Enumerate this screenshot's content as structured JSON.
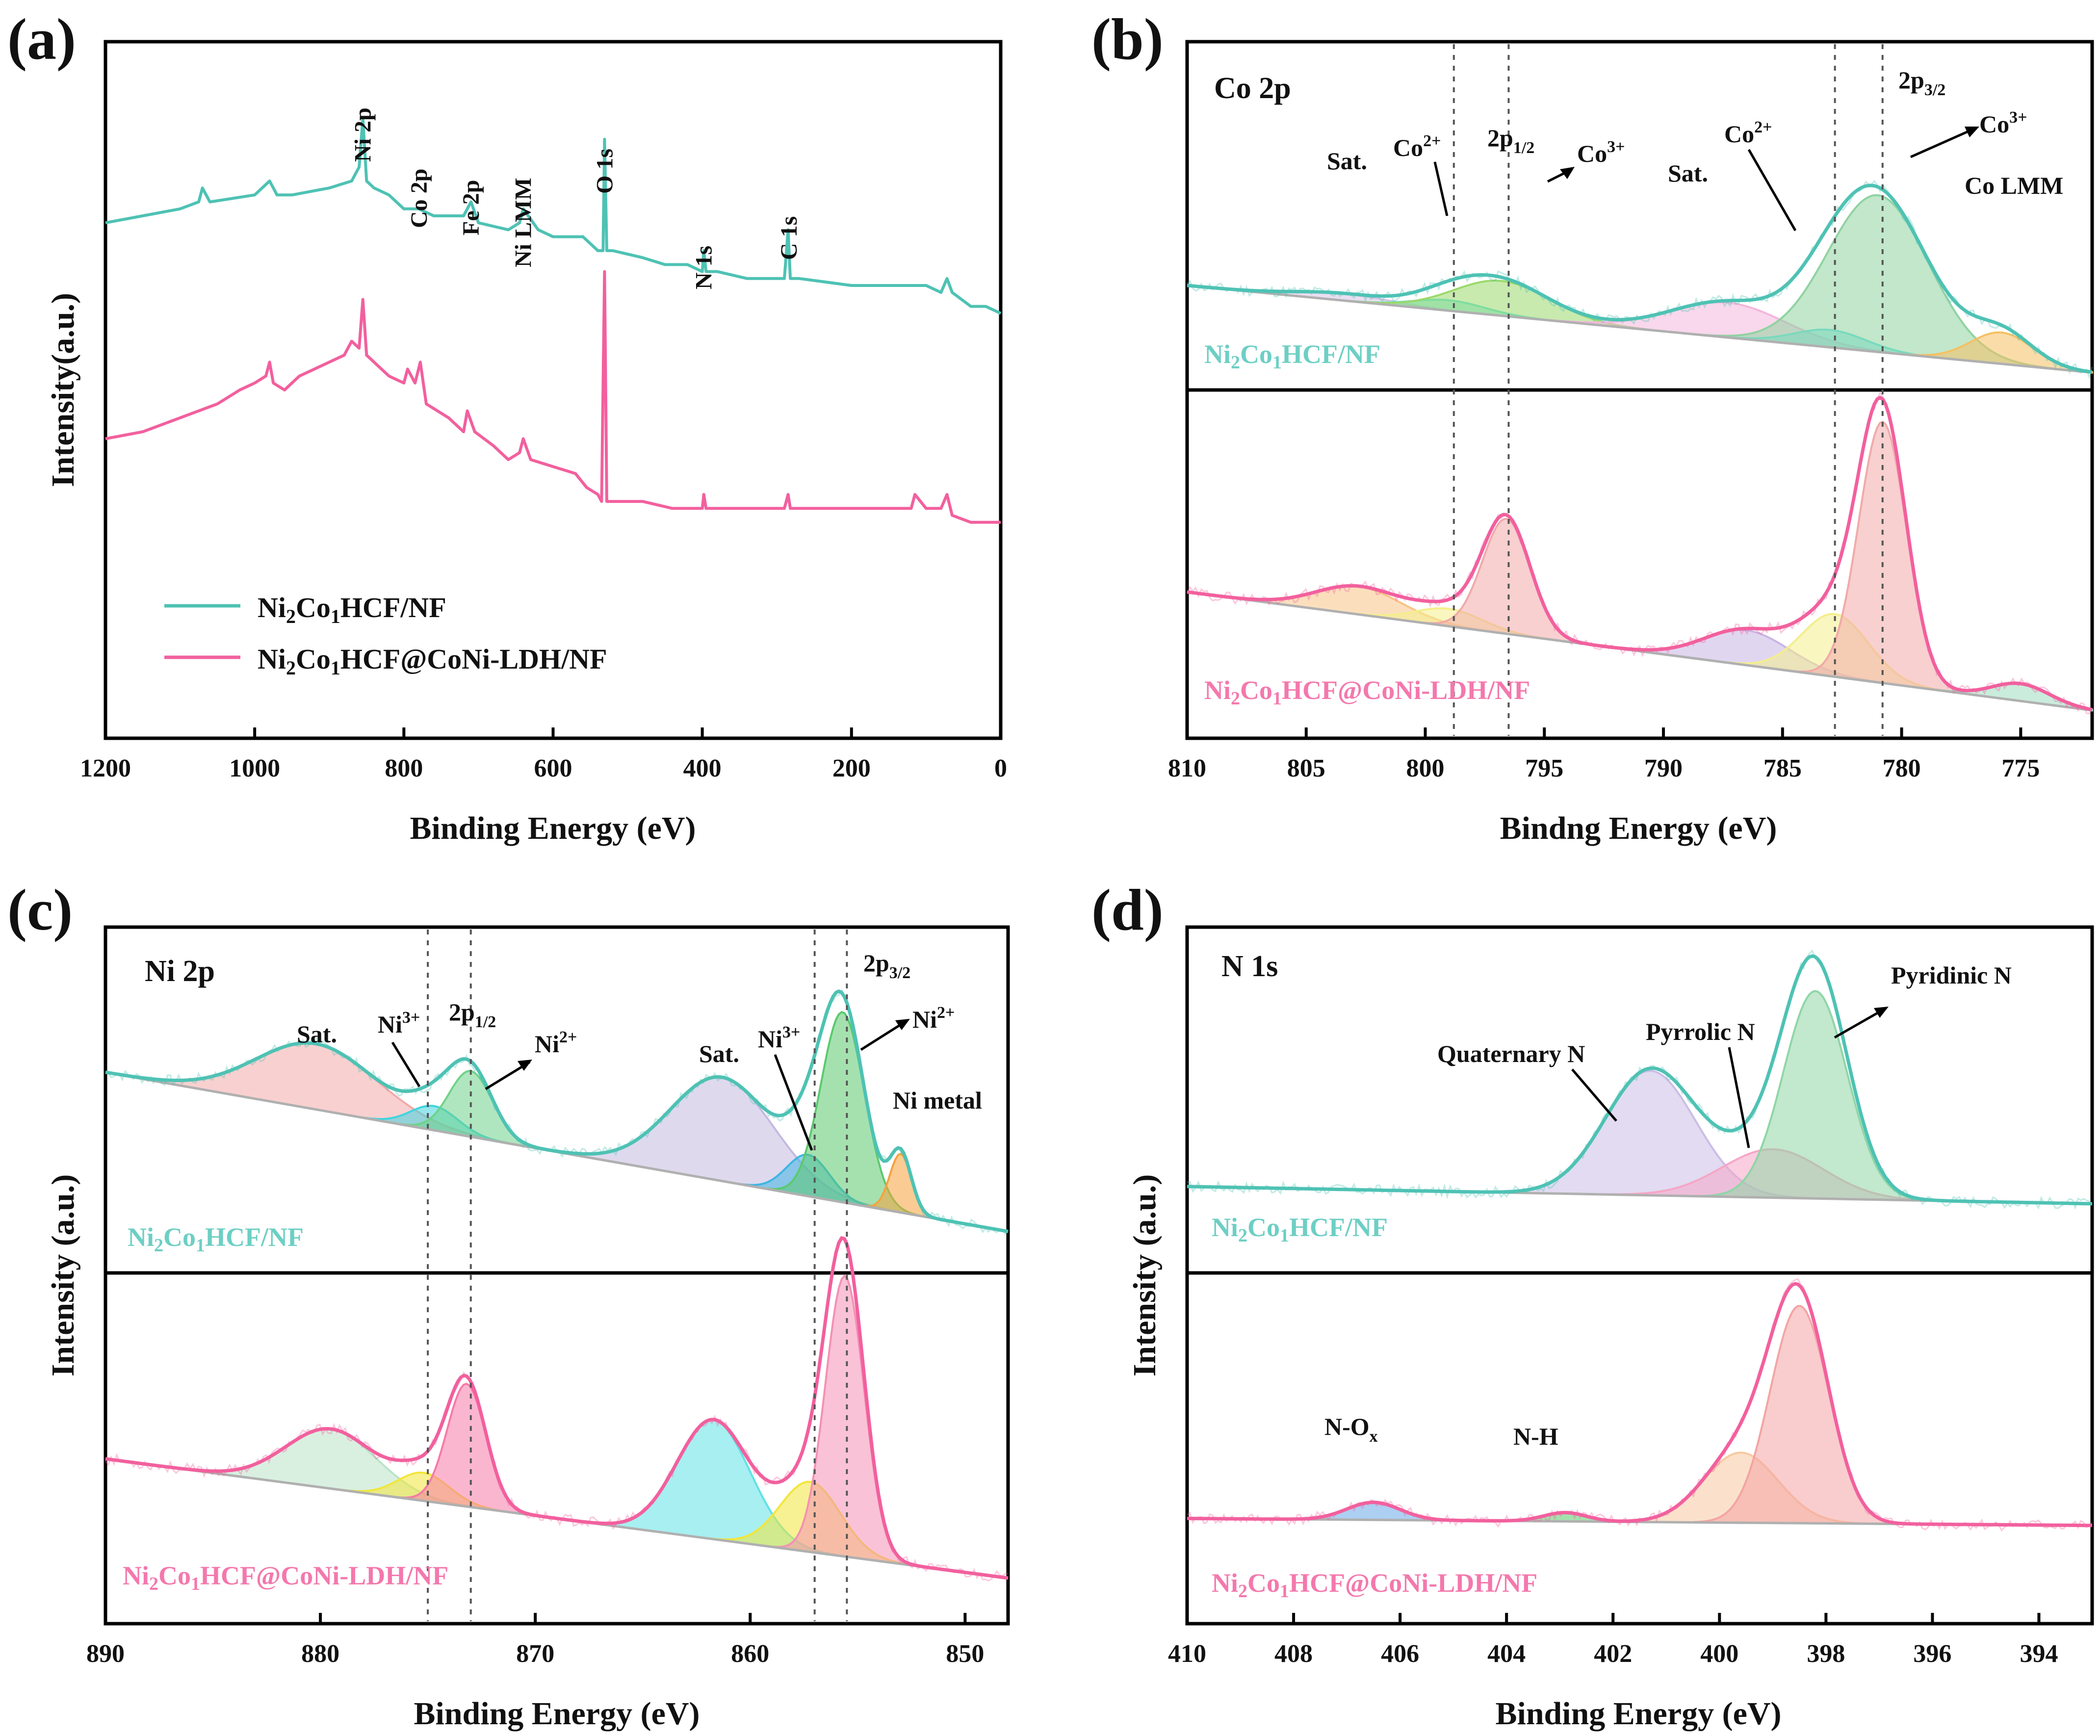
{
  "colors": {
    "teal": "#4ec2b4",
    "pink": "#f2609e",
    "axis": "#000000",
    "gray": "#b0b0b0"
  },
  "chart_data": [
    {
      "panel": "(a)",
      "type": "line",
      "title": "",
      "xlabel": "Binding Energy (eV)",
      "ylabel": "Intensity(a.u.)",
      "xlim": [
        1200,
        0
      ],
      "xticks": [
        "1200",
        "1000",
        "800",
        "600",
        "400",
        "200",
        "0"
      ],
      "xtick_values": [
        1200,
        1000,
        800,
        600,
        400,
        200,
        0
      ],
      "ylim": [
        0,
        100
      ],
      "legend": [
        "Ni2Co1HCF/NF",
        "Ni2Co1HCF@CoNi-LDH/NF"
      ],
      "legend_position": "bottom-left",
      "peak_labels": [
        {
          "text": "Ni 2p",
          "x": 855
        },
        {
          "text": "Co 2p",
          "x": 780
        },
        {
          "text": "Fe 2p",
          "x": 710
        },
        {
          "text": "Ni LMM",
          "x": 640
        },
        {
          "text": "O 1s",
          "x": 531
        },
        {
          "text": "N 1s",
          "x": 398
        },
        {
          "text": "C 1s",
          "x": 284
        }
      ],
      "series": [
        {
          "name": "Ni2Co1HCF/NF",
          "color": "teal",
          "x": [
            1200,
            1150,
            1100,
            1075,
            1070,
            1060,
            1000,
            980,
            970,
            950,
            900,
            870,
            860,
            855,
            850,
            840,
            820,
            800,
            780,
            760,
            720,
            710,
            700,
            660,
            645,
            640,
            620,
            600,
            560,
            540,
            533,
            531,
            528,
            520,
            480,
            450,
            420,
            400,
            398,
            395,
            380,
            340,
            300,
            290,
            285,
            282,
            270,
            200,
            150,
            100,
            80,
            72,
            65,
            40,
            20,
            0
          ],
          "y": [
            74,
            75,
            76,
            77,
            79,
            77,
            78,
            80,
            78,
            78,
            79,
            80,
            82,
            89,
            80,
            79,
            78,
            76,
            76,
            75,
            75,
            77,
            74,
            73,
            74,
            76,
            73,
            72,
            72,
            70,
            70,
            86,
            70,
            70,
            69,
            68,
            68,
            67,
            70,
            67,
            67,
            66,
            66,
            66,
            73,
            66,
            66,
            65,
            65,
            65,
            64,
            66,
            64,
            62,
            62,
            61
          ]
        },
        {
          "name": "Ni2Co1HCF@CoNi-LDH/NF",
          "color": "pink",
          "x": [
            1200,
            1150,
            1100,
            1050,
            1020,
            1000,
            985,
            980,
            975,
            960,
            940,
            900,
            880,
            870,
            860,
            855,
            850,
            840,
            820,
            800,
            795,
            785,
            778,
            770,
            740,
            720,
            715,
            705,
            680,
            660,
            645,
            640,
            630,
            600,
            570,
            555,
            540,
            535,
            531,
            528,
            520,
            480,
            440,
            420,
            400,
            398,
            395,
            380,
            340,
            300,
            290,
            285,
            282,
            270,
            200,
            150,
            120,
            115,
            100,
            80,
            72,
            65,
            40,
            20,
            0
          ],
          "y": [
            43,
            44,
            46,
            48,
            50,
            51,
            52,
            54,
            51,
            50,
            52,
            54,
            55,
            57,
            56,
            63,
            55,
            54,
            52,
            51,
            53,
            51,
            54,
            48,
            46,
            44,
            47,
            44,
            42,
            40,
            41,
            43,
            40,
            39,
            38,
            36,
            35,
            34,
            67,
            34,
            34,
            34,
            33,
            33,
            33,
            35,
            33,
            33,
            33,
            33,
            33,
            35,
            33,
            33,
            33,
            33,
            33,
            35,
            33,
            33,
            35,
            32,
            31,
            31,
            31
          ]
        }
      ]
    },
    {
      "panel": "(b)",
      "type": "line",
      "title": "Co 2p",
      "xlabel": "Bindng Energy (eV)",
      "ylabel": "",
      "xlim": [
        810,
        772
      ],
      "xticks": [
        "810",
        "805",
        "800",
        "795",
        "790",
        "785",
        "780",
        "775"
      ],
      "xtick_values": [
        810,
        805,
        800,
        795,
        790,
        785,
        780,
        775
      ],
      "reference_lines_eV": [
        798.8,
        796.5,
        782.8,
        780.8
      ],
      "subpanels": [
        {
          "sample": "Ni2Co1HCF/NF",
          "envelope_color": "teal",
          "baseline": [
            [
              810,
              30
            ],
            [
              772,
              5
            ]
          ],
          "peaks": [
            {
              "label": "Sat. (Co 2p1/2)",
              "center": 803.5,
              "height": 2,
              "width": 2.0,
              "color": "#d9c3e6"
            },
            {
              "label": "Co2+",
              "center": 799.0,
              "height": 3,
              "width": 1.5,
              "color": "#5fdfe0"
            },
            {
              "label": "Co3+",
              "center": 796.8,
              "height": 10,
              "width": 2.0,
              "color": "#9bd96b"
            },
            {
              "label": "Sat.",
              "center": 787.3,
              "height": 10,
              "width": 2.4,
              "color": "#f4b6dc"
            },
            {
              "label": "Co2+",
              "center": 783.0,
              "height": 5,
              "width": 1.5,
              "color": "#5fdfe0"
            },
            {
              "label": "Co3+",
              "center": 781.0,
              "height": 45,
              "width": 2.1,
              "color": "#8fd3a1"
            },
            {
              "label": "Co LMM",
              "center": 775.8,
              "height": 9,
              "width": 1.3,
              "color": "#f5c063"
            }
          ],
          "annotations": [
            "Sat.",
            "Co2+",
            "2p1/2",
            "Co3+",
            "Sat.",
            "Co2+",
            "2p3/2",
            "Co3+",
            "Co LMM"
          ]
        },
        {
          "sample": "Ni2Co1HCF@CoNi-LDH/NF",
          "envelope_color": "pink",
          "baseline": [
            [
              810,
              42
            ],
            [
              772,
              8
            ]
          ],
          "peaks": [
            {
              "label": "Sat.",
              "center": 802.8,
              "height": 8,
              "width": 1.8,
              "color": "#f8c487"
            },
            {
              "label": "Co2+",
              "center": 799.0,
              "height": 5,
              "width": 1.4,
              "color": "#f4ee8d"
            },
            {
              "label": "Co3+",
              "center": 796.6,
              "height": 33,
              "width": 1.0,
              "color": "#f2a9a9"
            },
            {
              "label": "Sat.",
              "center": 786.5,
              "height": 10,
              "width": 1.8,
              "color": "#c9b5e4"
            },
            {
              "label": "Co2+",
              "center": 782.8,
              "height": 18,
              "width": 1.4,
              "color": "#f4ee8d"
            },
            {
              "label": "Co3+",
              "center": 780.8,
              "height": 75,
              "width": 1.0,
              "color": "#f2a9a9"
            },
            {
              "label": "Co LMM",
              "center": 775.0,
              "height": 5,
              "width": 1.2,
              "color": "#9fdcc0"
            }
          ],
          "annotations": []
        }
      ]
    },
    {
      "panel": "(c)",
      "type": "line",
      "title": "Ni 2p",
      "xlabel": "Binding Energy (eV)",
      "ylabel": "Intensity (a.u.)",
      "xlim": [
        890,
        848
      ],
      "xticks": [
        "890",
        "880",
        "870",
        "860",
        "850"
      ],
      "xtick_values": [
        890,
        880,
        870,
        860,
        850
      ],
      "reference_lines_eV": [
        875.0,
        873.0,
        857.0,
        855.5
      ],
      "subpanels": [
        {
          "sample": "Ni2Co1HCF/NF",
          "envelope_color": "teal",
          "baseline": [
            [
              890,
              58
            ],
            [
              848,
              12
            ]
          ],
          "peaks": [
            {
              "label": "Sat.",
              "center": 880.2,
              "height": 19,
              "width": 2.8,
              "color": "#f4a9a9"
            },
            {
              "label": "Ni3+",
              "center": 874.7,
              "height": 7,
              "width": 1.1,
              "color": "#3fd4df"
            },
            {
              "label": "Ni2+",
              "center": 873.0,
              "height": 19,
              "width": 1.0,
              "color": "#6fd28a"
            },
            {
              "label": "Sat.",
              "center": 861.3,
              "height": 30,
              "width": 2.4,
              "color": "#c4b9e0"
            },
            {
              "label": "Ni3+",
              "center": 857.3,
              "height": 12,
              "width": 1.0,
              "color": "#3fb5e3"
            },
            {
              "label": "Ni2+",
              "center": 855.7,
              "height": 55,
              "width": 1.0,
              "color": "#5bc96e"
            },
            {
              "label": "Ni metal",
              "center": 853.0,
              "height": 17,
              "width": 0.5,
              "color": "#f5a23d"
            }
          ],
          "annotations": [
            "Sat.",
            "Ni3+",
            "2p1/2",
            "Ni2+",
            "Sat.",
            "Ni3+",
            "2p3/2",
            "Ni2+",
            "Ni metal"
          ]
        },
        {
          "sample": "Ni2Co1HCF@CoNi-LDH/NF",
          "envelope_color": "pink",
          "baseline": [
            [
              890,
              47
            ],
            [
              848,
              13
            ]
          ],
          "peaks": [
            {
              "label": "Sat.",
              "center": 879.5,
              "height": 17,
              "width": 2.1,
              "color": "#b9e4c8"
            },
            {
              "label": "Ni3+",
              "center": 875.2,
              "height": 8,
              "width": 1.2,
              "color": "#f2e63a"
            },
            {
              "label": "Ni2+",
              "center": 873.2,
              "height": 35,
              "width": 0.9,
              "color": "#f77aa8"
            },
            {
              "label": "Sat.",
              "center": 861.7,
              "height": 34,
              "width": 1.7,
              "color": "#5fe2e6"
            },
            {
              "label": "Ni3+",
              "center": 857.2,
              "height": 20,
              "width": 1.4,
              "color": "#f2e63a"
            },
            {
              "label": "Ni2+",
              "center": 855.6,
              "height": 80,
              "width": 0.9,
              "color": "#f590b5"
            }
          ],
          "annotations": []
        }
      ]
    },
    {
      "panel": "(d)",
      "type": "line",
      "title": "N 1s",
      "xlabel": "Binding Energy (eV)",
      "ylabel": "Intensity (a.u.)",
      "xlim": [
        410,
        393
      ],
      "xticks": [
        "410",
        "408",
        "406",
        "404",
        "402",
        "400",
        "398",
        "396",
        "394"
      ],
      "xtick_values": [
        410,
        408,
        406,
        404,
        402,
        400,
        398,
        396,
        394
      ],
      "subpanels": [
        {
          "sample": "Ni2Co1HCF/NF",
          "envelope_color": "teal",
          "baseline": [
            [
              410,
              25
            ],
            [
              393,
              20
            ]
          ],
          "peaks": [
            {
              "label": "Quaternary N",
              "center": 401.3,
              "height": 36,
              "width": 0.85,
              "color": "#cbbde6"
            },
            {
              "label": "Pyrrolic N",
              "center": 399.0,
              "height": 14,
              "width": 0.95,
              "color": "#f6a6c6"
            },
            {
              "label": "Pyridinic N",
              "center": 398.2,
              "height": 60,
              "width": 0.6,
              "color": "#8fd6a6"
            }
          ],
          "annotations": [
            "Quaternary N",
            "Pyrrolic N",
            "Pyridinic N"
          ]
        },
        {
          "sample": "Ni2Co1HCF@CoNi-LDH/NF",
          "envelope_color": "pink",
          "baseline": [
            [
              410,
              30
            ],
            [
              393,
              28
            ]
          ],
          "peaks": [
            {
              "label": "N-Ox",
              "center": 406.5,
              "height": 5,
              "width": 0.5,
              "color": "#6aa8e8"
            },
            {
              "label": "N-H",
              "center": 402.9,
              "height": 2.5,
              "width": 0.4,
              "color": "#59c969"
            },
            {
              "label": "Pyrrolic N",
              "center": 399.6,
              "height": 20,
              "width": 0.7,
              "color": "#f8c9a0"
            },
            {
              "label": "Pyridinic N",
              "center": 398.5,
              "height": 62,
              "width": 0.55,
              "color": "#f4a4a4"
            }
          ],
          "annotations": [
            "N-Ox",
            "N-H"
          ]
        }
      ]
    }
  ]
}
